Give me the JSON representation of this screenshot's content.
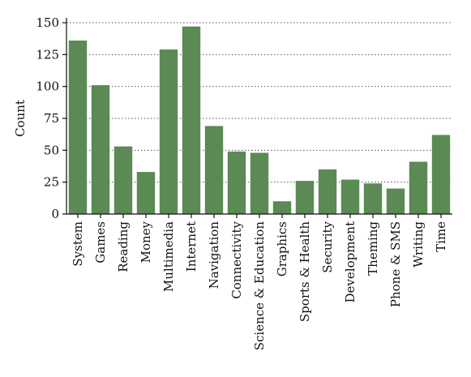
{
  "chart_data": {
    "type": "bar",
    "title": "",
    "xlabel": "",
    "ylabel": "Count",
    "ylim": [
      0,
      150
    ],
    "yticks": [
      0,
      25,
      50,
      75,
      100,
      125,
      150
    ],
    "grid": "horizontal dotted",
    "bar_color": "#5b8a55",
    "categories": [
      "System",
      "Games",
      "Reading",
      "Money",
      "Multimedia",
      "Internet",
      "Navigation",
      "Connectivity",
      "Science & Education",
      "Graphics",
      "Sports & Health",
      "Security",
      "Development",
      "Theming",
      "Phone & SMS",
      "Writing",
      "Time"
    ],
    "values": [
      136,
      101,
      53,
      33,
      129,
      147,
      69,
      49,
      48,
      10,
      26,
      35,
      27,
      24,
      20,
      41,
      62
    ]
  }
}
